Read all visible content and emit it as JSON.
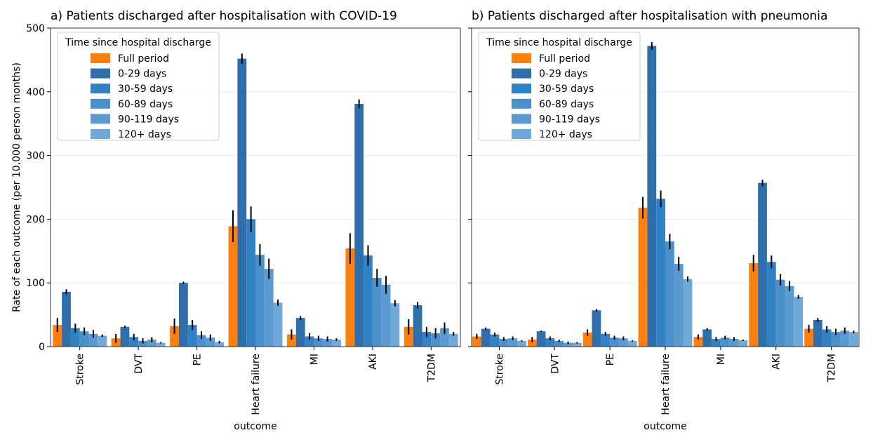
{
  "shared": {
    "ylabel": "Rate of each outcome (per 10,000 person months)",
    "xlabel": "outcome",
    "legend_title": "Time since hospital discharge"
  },
  "chart_data": [
    {
      "type": "bar",
      "title": "a) Patients discharged after hospitalisation with COVID-19",
      "xlabel": "outcome",
      "ylabel": "Rate of each outcome (per 10,000 person months)",
      "ylim": [
        0,
        500
      ],
      "yticks": [
        0,
        100,
        200,
        300,
        400,
        500
      ],
      "grid": true,
      "legend_title": "Time since hospital discharge",
      "legend_position": "top-left",
      "categories": [
        "Stroke",
        "DVT",
        "PE",
        "Heart failure",
        "MI",
        "AKI",
        "T2DM"
      ],
      "series": [
        {
          "name": "Full period",
          "color": "#ff7f0e",
          "values": [
            34,
            13,
            32,
            189,
            19,
            154,
            31
          ],
          "errors": [
            11,
            7,
            12,
            25,
            8,
            24,
            12
          ]
        },
        {
          "name": "0-29 days",
          "color": "#2e6fab",
          "values": [
            86,
            31,
            100,
            452,
            45,
            381,
            65
          ],
          "errors": [
            4,
            2,
            2,
            8,
            3,
            7,
            5
          ]
        },
        {
          "name": "30-59 days",
          "color": "#3182c4",
          "values": [
            29,
            15,
            34,
            200,
            16,
            143,
            23
          ],
          "errors": [
            7,
            5,
            8,
            20,
            5,
            16,
            8
          ]
        },
        {
          "name": "60-89 days",
          "color": "#4a90cb",
          "values": [
            24,
            9,
            18,
            144,
            13,
            108,
            21
          ],
          "errors": [
            6,
            4,
            6,
            17,
            4,
            14,
            8
          ]
        },
        {
          "name": "90-119 days",
          "color": "#5a9ad0",
          "values": [
            20,
            11,
            14,
            122,
            12,
            97,
            29
          ],
          "errors": [
            6,
            4,
            5,
            16,
            4,
            14,
            9
          ]
        },
        {
          "name": "120+ days",
          "color": "#70a8d8",
          "values": [
            17,
            6,
            7,
            69,
            11,
            68,
            20
          ],
          "errors": [
            2,
            1,
            2,
            5,
            2,
            5,
            3
          ]
        }
      ]
    },
    {
      "type": "bar",
      "title": "b) Patients discharged after hospitalisation with pneumonia",
      "xlabel": "outcome",
      "ylim": [
        0,
        500
      ],
      "yticks": [
        0,
        100,
        200,
        300,
        400,
        500
      ],
      "grid": true,
      "legend_title": "Time since hospital discharge",
      "legend_position": "top-left",
      "categories": [
        "Stroke",
        "DVT",
        "PE",
        "Heart failure",
        "MI",
        "AKI",
        "T2DM"
      ],
      "series": [
        {
          "name": "Full period",
          "color": "#ff7f0e",
          "values": [
            16,
            11,
            22,
            218,
            15,
            131,
            28
          ],
          "errors": [
            4,
            4,
            5,
            17,
            4,
            13,
            6
          ]
        },
        {
          "name": "0-29 days",
          "color": "#2e6fab",
          "values": [
            28,
            24,
            57,
            472,
            27,
            257,
            42
          ],
          "errors": [
            2,
            1,
            2,
            6,
            2,
            5,
            3
          ]
        },
        {
          "name": "30-59 days",
          "color": "#3182c4",
          "values": [
            19,
            13,
            20,
            232,
            12,
            133,
            27
          ],
          "errors": [
            3,
            3,
            3,
            13,
            3,
            10,
            5
          ]
        },
        {
          "name": "60-89 days",
          "color": "#4a90cb",
          "values": [
            12,
            9,
            14,
            165,
            14,
            105,
            23
          ],
          "errors": [
            3,
            2,
            3,
            12,
            3,
            9,
            5
          ]
        },
        {
          "name": "90-119 days",
          "color": "#5a9ad0",
          "values": [
            13,
            6,
            13,
            130,
            12,
            95,
            25
          ],
          "errors": [
            3,
            2,
            3,
            11,
            3,
            8,
            5
          ]
        },
        {
          "name": "120+ days",
          "color": "#70a8d8",
          "values": [
            9,
            6,
            9,
            106,
            10,
            78,
            23
          ],
          "errors": [
            1,
            1,
            1,
            4,
            1,
            3,
            2
          ]
        }
      ]
    }
  ]
}
